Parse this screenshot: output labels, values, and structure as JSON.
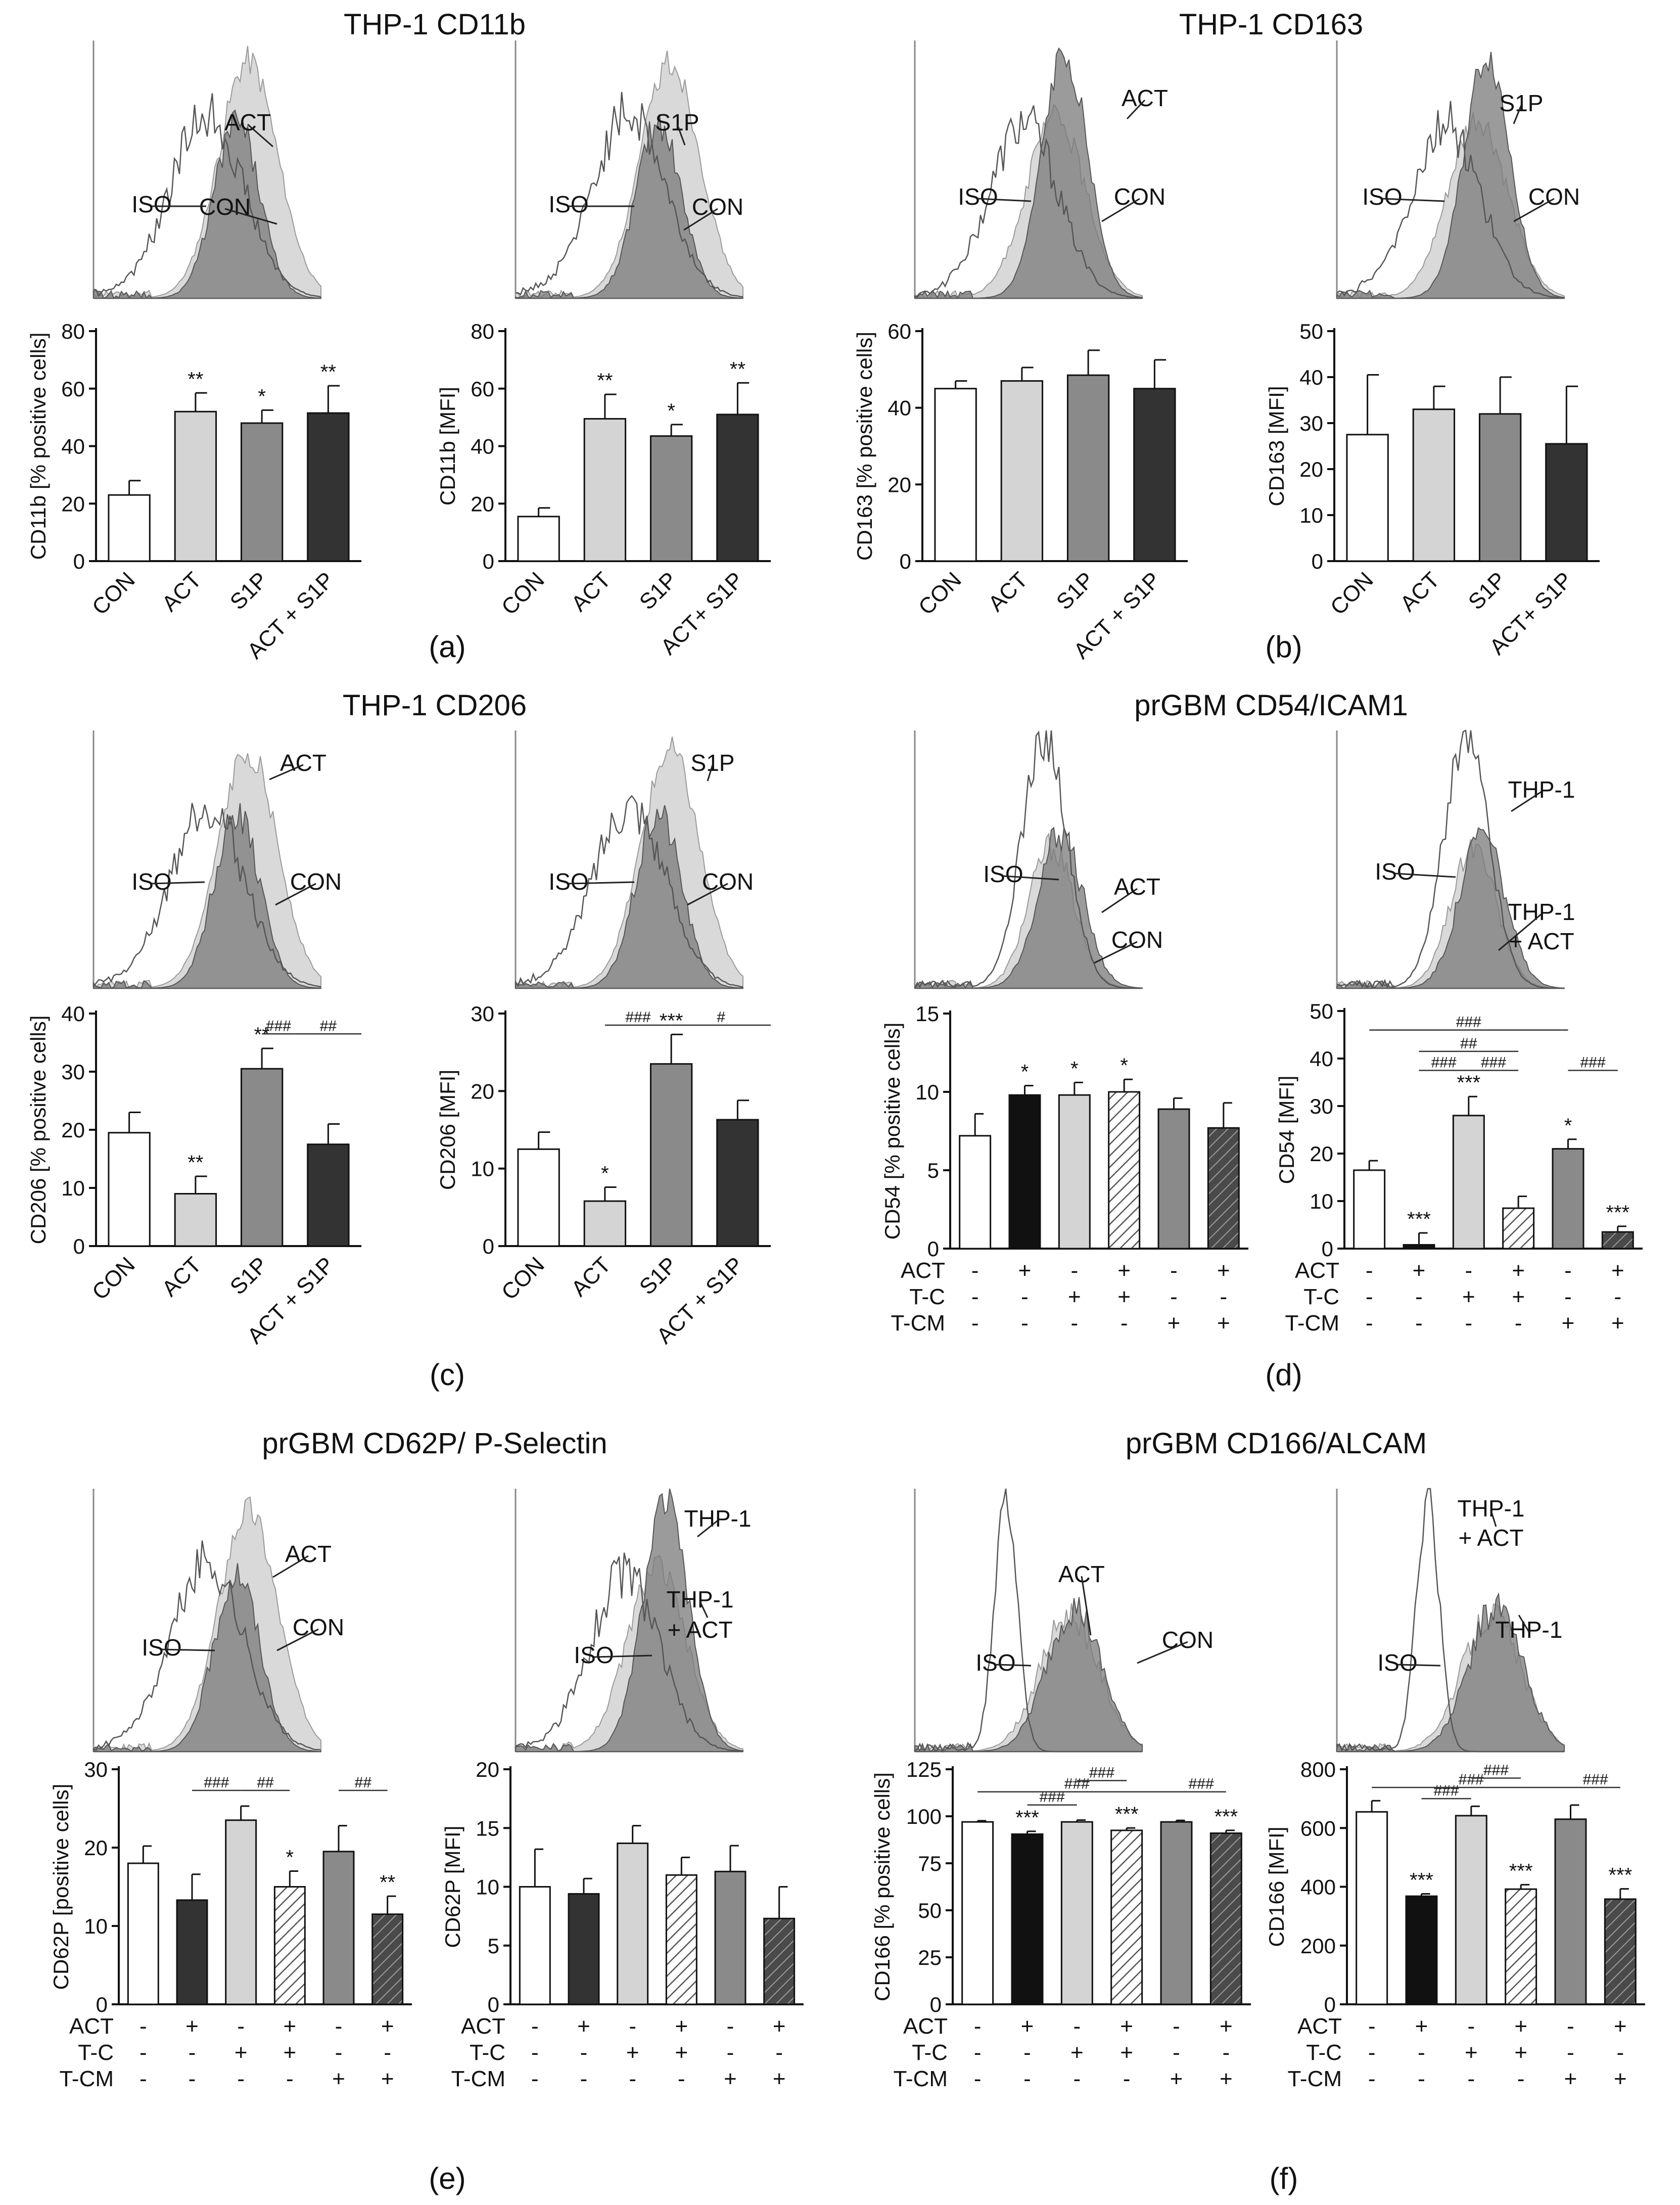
{
  "colors": {
    "white": "#ffffff",
    "black": "#111111",
    "light": "#d4d4d4",
    "mid": "#8a8a8a",
    "dark": "#333333",
    "hist_iso": "#555555",
    "hist_light": "#d9d9d9",
    "hist_dark": "#7a7a7a"
  },
  "sections": [
    {
      "title": "THP-1 CD11b",
      "letter": "(a)"
    },
    {
      "title": "THP-1 CD163",
      "letter": "(b)"
    },
    {
      "title": "THP-1 CD206",
      "letter": "(c)"
    },
    {
      "title": "prGBM CD54/ICAM1",
      "letter": "(d)"
    },
    {
      "title": "prGBM CD62P/ P-Selectin",
      "letter": "(e)"
    },
    {
      "title": "prGBM CD166/ALCAM",
      "letter": "(f)"
    }
  ],
  "treatment_rows": {
    "labels": [
      "ACT",
      "T-C",
      "T-CM"
    ],
    "signs": [
      [
        "-",
        "+",
        "-",
        "+",
        "-",
        "+"
      ],
      [
        "-",
        "-",
        "+",
        "+",
        "-",
        "-"
      ],
      [
        "-",
        "-",
        "-",
        "-",
        "+",
        "+"
      ]
    ]
  },
  "histograms": [
    {
      "labels": [
        "ACT",
        "ISO",
        "CON"
      ],
      "variant": "thp_light"
    },
    {
      "labels": [
        "S1P",
        "ISO",
        "CON"
      ],
      "variant": "thp_light"
    },
    {
      "labels": [
        "ACT",
        "ISO",
        "CON"
      ],
      "variant": "thp_dark"
    },
    {
      "labels": [
        "S1P",
        "ISO",
        "CON"
      ],
      "variant": "thp_dark"
    },
    {
      "labels": [
        "ACT",
        "ISO",
        "CON"
      ],
      "variant": "thp_light"
    },
    {
      "labels": [
        "S1P",
        "ISO",
        "CON"
      ],
      "variant": "thp_light"
    },
    {
      "labels": [
        "ISO",
        "ACT",
        "CON"
      ],
      "variant": "gbm"
    },
    {
      "labels": [
        "THP-1",
        "ISO",
        "THP-1",
        "+ ACT"
      ],
      "variant": "gbm"
    },
    {
      "labels": [
        "ACT",
        "ISO",
        "CON"
      ],
      "variant": "thp_light"
    },
    {
      "labels": [
        "THP-1",
        "THP-1",
        "+ ACT",
        "ISO"
      ],
      "variant": "thp_dark"
    },
    {
      "labels": [
        "ACT",
        "ISO",
        "CON"
      ],
      "variant": "alcam"
    },
    {
      "labels": [
        "THP-1",
        "+ ACT",
        "ISO",
        "THP-1"
      ],
      "variant": "alcam"
    }
  ],
  "chart_data": [
    {
      "type": "bar",
      "panel": "a-left",
      "ylabel": "CD11b [% positive cells]",
      "ylim": [
        0,
        80
      ],
      "yticks": [
        "0",
        "20",
        "40",
        "60",
        "80"
      ],
      "categories": [
        "CON",
        "ACT",
        "S1P",
        "ACT + S1P"
      ],
      "values": [
        23,
        52,
        48,
        51.5
      ],
      "errors": [
        5,
        6.5,
        4.5,
        9.5
      ],
      "annotations": [
        "",
        "**",
        "*",
        "**"
      ],
      "fills": [
        "white",
        "light",
        "mid",
        "dark"
      ]
    },
    {
      "type": "bar",
      "panel": "a-right",
      "ylabel": "CD11b [MFI]",
      "ylim": [
        0,
        80
      ],
      "yticks": [
        "0",
        "20",
        "40",
        "60",
        "80"
      ],
      "categories": [
        "CON",
        "ACT",
        "S1P",
        "ACT+ S1P"
      ],
      "values": [
        15.5,
        49.5,
        43.5,
        51
      ],
      "errors": [
        3,
        8.5,
        4,
        11
      ],
      "annotations": [
        "",
        "**",
        "*",
        "**"
      ],
      "fills": [
        "white",
        "light",
        "mid",
        "dark"
      ]
    },
    {
      "type": "bar",
      "panel": "b-left",
      "ylabel": "CD163 [% positive cells]",
      "ylim": [
        0,
        60
      ],
      "yticks": [
        "0",
        "20",
        "40",
        "60"
      ],
      "categories": [
        "CON",
        "ACT",
        "S1P",
        "ACT + S1P"
      ],
      "values": [
        45,
        47,
        48.5,
        45
      ],
      "errors": [
        2,
        3.5,
        6.5,
        7.5
      ],
      "annotations": [
        "",
        "",
        "",
        ""
      ],
      "fills": [
        "white",
        "light",
        "mid",
        "dark"
      ]
    },
    {
      "type": "bar",
      "panel": "b-right",
      "ylabel": "CD163 [MFI]",
      "ylim": [
        0,
        50
      ],
      "yticks": [
        "0",
        "10",
        "20",
        "30",
        "40",
        "50"
      ],
      "categories": [
        "CON",
        "ACT",
        "S1P",
        "ACT+ S1P"
      ],
      "values": [
        27.5,
        33,
        32,
        25.5
      ],
      "errors": [
        13,
        5,
        8,
        12.5
      ],
      "annotations": [
        "",
        "",
        "",
        ""
      ],
      "fills": [
        "white",
        "light",
        "mid",
        "dark"
      ]
    },
    {
      "type": "bar",
      "panel": "c-left",
      "ylabel": "CD206 [% positive cells]",
      "ylim": [
        0,
        40
      ],
      "yticks": [
        "0",
        "10",
        "20",
        "30",
        "40"
      ],
      "categories": [
        "CON",
        "ACT",
        "S1P",
        "ACT + S1P"
      ],
      "values": [
        19.5,
        9,
        30.5,
        17.5
      ],
      "errors": [
        3.5,
        3,
        3.5,
        3.5
      ],
      "annotations": [
        "",
        "**",
        "**",
        ""
      ],
      "fills": [
        "white",
        "light",
        "mid",
        "dark"
      ],
      "brackets": [
        {
          "from": 2,
          "to": 2.5,
          "y": 36.5,
          "label": "###"
        },
        {
          "from": 2.5,
          "to": 3.5,
          "y": 36.5,
          "label": "##"
        }
      ]
    },
    {
      "type": "bar",
      "panel": "c-right",
      "ylabel": "CD206 [MFI]",
      "ylim": [
        0,
        30
      ],
      "yticks": [
        "0",
        "10",
        "20",
        "30"
      ],
      "categories": [
        "CON",
        "ACT",
        "S1P",
        "ACT + S1P"
      ],
      "values": [
        12.5,
        5.8,
        23.5,
        16.3
      ],
      "errors": [
        2.2,
        1.8,
        3.8,
        2.5
      ],
      "annotations": [
        "",
        "*",
        "***",
        ""
      ],
      "fills": [
        "white",
        "light",
        "mid",
        "dark"
      ],
      "brackets": [
        {
          "from": 1,
          "to": 2,
          "y": 28.5,
          "label": "###"
        },
        {
          "from": 2,
          "to": 3.5,
          "y": 28.5,
          "label": "#"
        }
      ]
    },
    {
      "type": "bar",
      "panel": "d-left",
      "ylabel": "CD54 [% positive cells]",
      "ylim": [
        0,
        15
      ],
      "yticks": [
        "0",
        "5",
        "10",
        "15"
      ],
      "values": [
        7.2,
        9.8,
        9.8,
        10,
        8.9,
        7.7
      ],
      "errors": [
        1.4,
        0.6,
        0.8,
        0.8,
        0.7,
        1.6
      ],
      "annotations": [
        "",
        "*",
        "*",
        "*",
        "",
        ""
      ],
      "fills": [
        "white",
        "black",
        "light",
        "hatch_light",
        "mid",
        "hatch_dark"
      ]
    },
    {
      "type": "bar",
      "panel": "d-right",
      "ylabel": "CD54 [MFI]",
      "ylim": [
        0,
        50
      ],
      "yticks": [
        "0",
        "10",
        "20",
        "30",
        "40",
        "50"
      ],
      "values": [
        16.5,
        0.8,
        28,
        8.5,
        21,
        3.5
      ],
      "errors": [
        2,
        2.5,
        4,
        2.5,
        2,
        1.2
      ],
      "annotations": [
        "",
        "***",
        "***",
        "",
        "*",
        "***"
      ],
      "fills": [
        "white",
        "black",
        "light",
        "hatch_light",
        "mid",
        "hatch_dark"
      ],
      "brackets": [
        {
          "from": 0,
          "to": 4,
          "y": 46,
          "label": "###"
        },
        {
          "from": 1,
          "to": 3,
          "y": 41.5,
          "label": "##"
        },
        {
          "from": 1,
          "to": 2,
          "y": 37.5,
          "label": "###"
        },
        {
          "from": 2,
          "to": 3,
          "y": 37.5,
          "label": "###"
        },
        {
          "from": 4,
          "to": 5,
          "y": 37.5,
          "label": "###"
        }
      ]
    },
    {
      "type": "bar",
      "panel": "e-left",
      "ylabel": "CD62P [positive cells]",
      "ylim": [
        0,
        30
      ],
      "yticks": [
        "0",
        "10",
        "20",
        "30"
      ],
      "values": [
        18,
        13.3,
        23.5,
        15,
        19.5,
        11.5
      ],
      "errors": [
        2.2,
        3.3,
        1.8,
        2,
        3.3,
        2.3
      ],
      "annotations": [
        "",
        "",
        "",
        "*",
        "",
        "**"
      ],
      "fills": [
        "white",
        "dark",
        "light",
        "hatch_light",
        "mid",
        "hatch_dark"
      ],
      "brackets": [
        {
          "from": 1,
          "to": 2,
          "y": 27.3,
          "label": "###"
        },
        {
          "from": 2,
          "to": 3,
          "y": 27.3,
          "label": "##"
        },
        {
          "from": 4,
          "to": 5,
          "y": 27.3,
          "label": "##"
        }
      ]
    },
    {
      "type": "bar",
      "panel": "e-right",
      "ylabel": "CD62P [MFI]",
      "ylim": [
        0,
        20
      ],
      "yticks": [
        "0",
        "5",
        "10",
        "15",
        "20"
      ],
      "values": [
        10,
        9.4,
        13.7,
        11,
        11.3,
        7.3
      ],
      "errors": [
        3.2,
        1.3,
        1.5,
        1.5,
        2.2,
        2.7
      ],
      "annotations": [
        "",
        "",
        "",
        "",
        "",
        ""
      ],
      "fills": [
        "white",
        "dark",
        "light",
        "hatch_light",
        "mid",
        "hatch_dark"
      ]
    },
    {
      "type": "bar",
      "panel": "f-left",
      "ylabel": "CD166 [% positive cells]",
      "ylim": [
        0,
        125
      ],
      "yticks": [
        "0",
        "25",
        "50",
        "75",
        "100",
        "125"
      ],
      "values": [
        97,
        90.5,
        97,
        92.5,
        97,
        91
      ],
      "errors": [
        0.6,
        1.5,
        1,
        1.3,
        0.8,
        1.5
      ],
      "annotations": [
        "",
        "***",
        "",
        "***",
        "",
        "***"
      ],
      "fills": [
        "white",
        "black",
        "light",
        "hatch_light",
        "mid",
        "hatch_dark"
      ],
      "brackets": [
        {
          "from": 1,
          "to": 2,
          "y": 106,
          "label": "###"
        },
        {
          "from": 0,
          "to": 4,
          "y": 113,
          "label": "###"
        },
        {
          "from": 2,
          "to": 3,
          "y": 119,
          "label": "###"
        },
        {
          "from": 4,
          "to": 5,
          "y": 113,
          "label": "###"
        }
      ]
    },
    {
      "type": "bar",
      "panel": "f-right",
      "ylabel": "CD166 [MFI]",
      "ylim": [
        0,
        800
      ],
      "yticks": [
        "0",
        "200",
        "400",
        "600",
        "800"
      ],
      "values": [
        655,
        368,
        642,
        392,
        630,
        358
      ],
      "errors": [
        38,
        8,
        32,
        15,
        48,
        35
      ],
      "annotations": [
        "",
        "***",
        "",
        "***",
        "",
        "***"
      ],
      "fills": [
        "white",
        "black",
        "light",
        "hatch_light",
        "mid",
        "hatch_dark"
      ],
      "brackets": [
        {
          "from": 1,
          "to": 2,
          "y": 700,
          "label": "###"
        },
        {
          "from": 0,
          "to": 4,
          "y": 738,
          "label": "###"
        },
        {
          "from": 2,
          "to": 3,
          "y": 770,
          "label": "###"
        },
        {
          "from": 4,
          "to": 5,
          "y": 738,
          "label": "###"
        }
      ]
    }
  ]
}
